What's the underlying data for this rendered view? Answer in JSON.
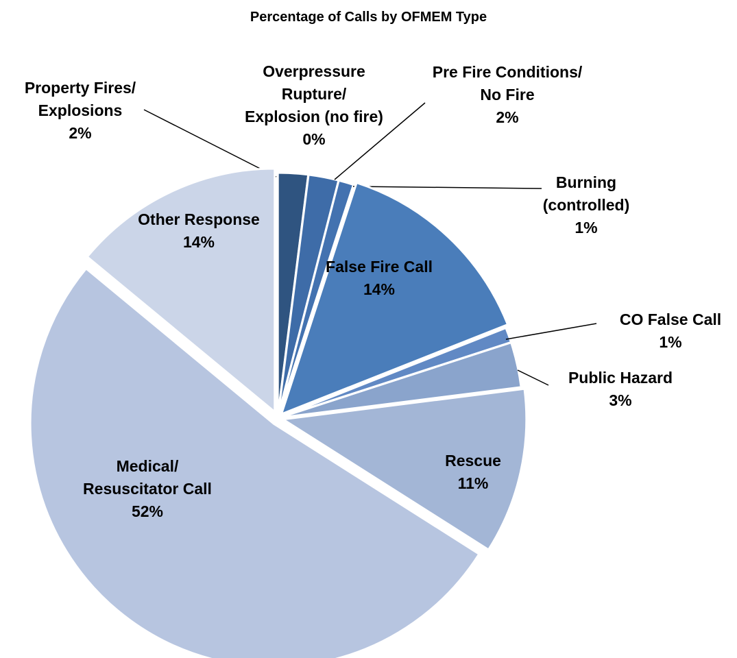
{
  "chart_data": {
    "type": "pie",
    "title": "Percentage of Calls by OFMEM Type",
    "categories": [
      "Property Fires/ Explosions",
      "Overpressure Rupture/ Explosion (no fire)",
      "Pre Fire Conditions/ No Fire",
      "Burning (controlled)",
      "False Fire Call",
      "CO False Call",
      "Public Hazard",
      "Rescue",
      "Medical/ Resuscitator Call",
      "Other Response"
    ],
    "values": [
      2,
      0,
      2,
      1,
      14,
      1,
      3,
      11,
      52,
      14
    ],
    "value_labels": [
      "2%",
      "0%",
      "2%",
      "1%",
      "14%",
      "1%",
      "3%",
      "11%",
      "52%",
      "14%"
    ],
    "colors": [
      "#2f5480",
      "#3a6598",
      "#3e6ca8",
      "#4372b0",
      "#4a7dba",
      "#6189c4",
      "#8aa4cc",
      "#a3b6d6",
      "#b7c5e0",
      "#cbd5e8"
    ]
  }
}
